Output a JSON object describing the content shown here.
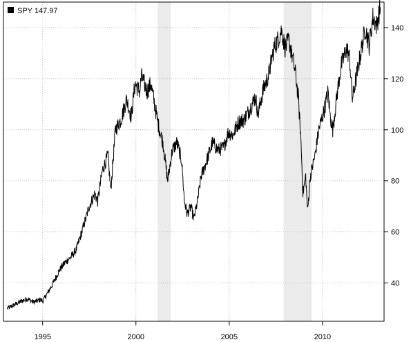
{
  "chart_data": {
    "type": "line",
    "legend": {
      "label": "SPY 147.97",
      "placement": "top-left",
      "swatch_color": "#000000"
    },
    "x_range": [
      1992.9,
      2013.3
    ],
    "y_range": [
      25,
      150
    ],
    "x_ticks": [
      {
        "value": 1995,
        "label": "1995"
      },
      {
        "value": 2000,
        "label": "2000"
      },
      {
        "value": 2005,
        "label": "2005"
      },
      {
        "value": 2010,
        "label": "2010"
      }
    ],
    "y_ticks": [
      {
        "value": 40,
        "label": "40"
      },
      {
        "value": 60,
        "label": "60"
      },
      {
        "value": 80,
        "label": "80"
      },
      {
        "value": 100,
        "label": "100"
      },
      {
        "value": 120,
        "label": "120"
      },
      {
        "value": 140,
        "label": "140"
      }
    ],
    "grid": true,
    "shaded_periods": [
      {
        "start": 2001.17,
        "end": 2001.87
      },
      {
        "start": 2007.92,
        "end": 2009.42
      }
    ],
    "series": [
      {
        "line_color": "#000000",
        "points": [
          [
            1993.1,
            30
          ],
          [
            1993.5,
            31.5
          ],
          [
            1993.9,
            33
          ],
          [
            1994.2,
            33.8
          ],
          [
            1994.5,
            32.5
          ],
          [
            1994.9,
            33.5
          ],
          [
            1995.0,
            32.8
          ],
          [
            1995.5,
            39
          ],
          [
            1995.9,
            45
          ],
          [
            1996.2,
            48
          ],
          [
            1996.5,
            50
          ],
          [
            1996.8,
            53
          ],
          [
            1997.1,
            60
          ],
          [
            1997.5,
            70
          ],
          [
            1997.8,
            75
          ],
          [
            1997.95,
            72
          ],
          [
            1998.2,
            84
          ],
          [
            1998.5,
            90
          ],
          [
            1998.65,
            76
          ],
          [
            1998.9,
            100
          ],
          [
            1999.2,
            104
          ],
          [
            1999.5,
            112
          ],
          [
            1999.75,
            105
          ],
          [
            1999.95,
            118
          ],
          [
            2000.2,
            115
          ],
          [
            2000.3,
            121
          ],
          [
            2000.6,
            115
          ],
          [
            2000.8,
            118
          ],
          [
            2001.0,
            110
          ],
          [
            2001.2,
            102
          ],
          [
            2001.45,
            95
          ],
          [
            2001.7,
            80
          ],
          [
            2001.95,
            92
          ],
          [
            2002.2,
            95
          ],
          [
            2002.45,
            88
          ],
          [
            2002.6,
            72
          ],
          [
            2002.75,
            67
          ],
          [
            2002.95,
            70
          ],
          [
            2003.1,
            65
          ],
          [
            2003.3,
            72
          ],
          [
            2003.5,
            82
          ],
          [
            2003.8,
            88
          ],
          [
            2004.1,
            95
          ],
          [
            2004.4,
            92
          ],
          [
            2004.7,
            93
          ],
          [
            2004.95,
            99
          ],
          [
            2005.2,
            98
          ],
          [
            2005.5,
            103
          ],
          [
            2005.8,
            104
          ],
          [
            2006.1,
            108
          ],
          [
            2006.4,
            113
          ],
          [
            2006.55,
            106
          ],
          [
            2006.8,
            115
          ],
          [
            2007.1,
            121
          ],
          [
            2007.4,
            132
          ],
          [
            2007.6,
            135
          ],
          [
            2007.8,
            139
          ],
          [
            2008.0,
            132
          ],
          [
            2008.2,
            135
          ],
          [
            2008.4,
            128
          ],
          [
            2008.55,
            122
          ],
          [
            2008.7,
            113
          ],
          [
            2008.85,
            95
          ],
          [
            2008.95,
            75
          ],
          [
            2009.1,
            82
          ],
          [
            2009.2,
            68
          ],
          [
            2009.35,
            82
          ],
          [
            2009.6,
            90
          ],
          [
            2009.8,
            100
          ],
          [
            2010.1,
            108
          ],
          [
            2010.3,
            115
          ],
          [
            2010.4,
            106
          ],
          [
            2010.55,
            100
          ],
          [
            2010.8,
            115
          ],
          [
            2011.0,
            125
          ],
          [
            2011.3,
            132
          ],
          [
            2011.45,
            128
          ],
          [
            2011.6,
            112
          ],
          [
            2011.8,
            120
          ],
          [
            2012.0,
            128
          ],
          [
            2012.3,
            140
          ],
          [
            2012.5,
            133
          ],
          [
            2012.7,
            144
          ],
          [
            2012.9,
            141
          ],
          [
            2013.1,
            147.97
          ]
        ]
      }
    ]
  }
}
